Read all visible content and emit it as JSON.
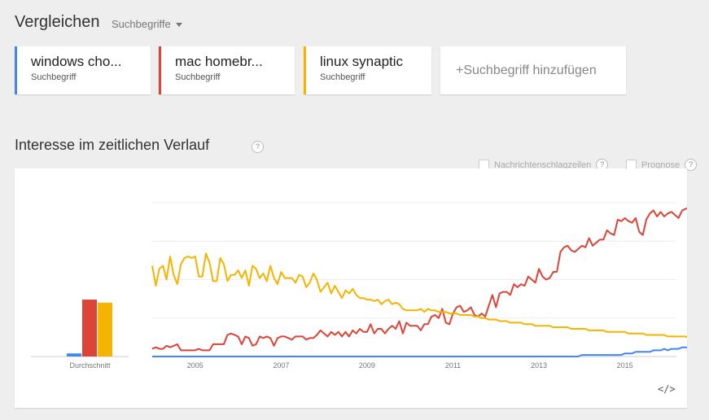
{
  "header": {
    "title": "Vergleichen",
    "dropdown_label": "Suchbegriffe"
  },
  "terms": [
    {
      "name": "windows cho...",
      "sub": "Suchbegriff",
      "color": "#4285f4"
    },
    {
      "name": "mac homebr...",
      "sub": "Suchbegriff",
      "color": "#db4437"
    },
    {
      "name": "linux synaptic",
      "sub": "Suchbegriff",
      "color": "#f4b400"
    }
  ],
  "add_term_label": "+Suchbegriff hinzufügen",
  "section": {
    "title": "Interesse im zeitlichen Verlauf",
    "help": "?"
  },
  "options": {
    "news_label": "Nachrichtenschlagzeilen",
    "forecast_label": "Prognose",
    "help": "?"
  },
  "embed_label": "</>",
  "chart_data": {
    "type": "line",
    "title": "Interesse im zeitlichen Verlauf",
    "x_start": 2004.0,
    "x_step": 0.0833333,
    "xlim": [
      2004.0,
      2016.2
    ],
    "ylim": [
      0,
      100
    ],
    "x_ticks": [
      "2005",
      "2007",
      "2009",
      "2011",
      "2013",
      "2015"
    ],
    "x_tick_values": [
      2005,
      2007,
      2009,
      2011,
      2013,
      2015
    ],
    "grid": true,
    "average_bars": {
      "label": "Durchschnitt",
      "values": [
        2,
        37,
        35
      ]
    },
    "series": [
      {
        "name": "windows cho...",
        "color": "#4285f4",
        "values": [
          0,
          0,
          0,
          0,
          0,
          0,
          0,
          0,
          0,
          0,
          0,
          0,
          0,
          0,
          0,
          0,
          0,
          0,
          0,
          0,
          0,
          0,
          0,
          0,
          0,
          0,
          0,
          0,
          0,
          0,
          0,
          0,
          0,
          0,
          0,
          0,
          0,
          0,
          0,
          0,
          0,
          0,
          0,
          0,
          0,
          0,
          0,
          0,
          0,
          0,
          0,
          0,
          0,
          0,
          0,
          0,
          0,
          0,
          0,
          0,
          0,
          0,
          0,
          0,
          0,
          0,
          0,
          0,
          0,
          0,
          0,
          0,
          0,
          0,
          0,
          0,
          0,
          0,
          0,
          0,
          0,
          0,
          0,
          0,
          0,
          0,
          0,
          0,
          0,
          0,
          0,
          0,
          0,
          0,
          0,
          0,
          0,
          0,
          0,
          0,
          0,
          0,
          0,
          0,
          0,
          0,
          0,
          0,
          0,
          0,
          0,
          0,
          0,
          0,
          0,
          0,
          0,
          0,
          0,
          0,
          1,
          1,
          1,
          1,
          1,
          1,
          1,
          1,
          1,
          1,
          1,
          1,
          2,
          2,
          2,
          3,
          3,
          3,
          3,
          3,
          4,
          4,
          4,
          5,
          4,
          5,
          5,
          5,
          6,
          6,
          6,
          6,
          6,
          7,
          6,
          6,
          7,
          7,
          8,
          8
        ]
      },
      {
        "name": "mac homebr...",
        "color": "#db4437",
        "values": [
          5,
          6,
          5,
          5,
          7,
          6,
          7,
          8,
          4,
          4,
          4,
          4,
          4,
          5,
          4,
          4,
          4,
          8,
          8,
          8,
          8,
          14,
          15,
          14,
          13,
          8,
          13,
          12,
          7,
          8,
          13,
          12,
          13,
          12,
          7,
          12,
          13,
          13,
          12,
          11,
          13,
          13,
          13,
          11,
          12,
          12,
          14,
          17,
          15,
          13,
          16,
          14,
          16,
          13,
          16,
          13,
          17,
          15,
          18,
          16,
          16,
          21,
          15,
          18,
          18,
          15,
          18,
          20,
          18,
          23,
          15,
          22,
          20,
          20,
          20,
          17,
          21,
          21,
          26,
          27,
          25,
          31,
          22,
          21,
          28,
          32,
          33,
          29,
          30,
          32,
          27,
          26,
          28,
          26,
          33,
          40,
          32,
          41,
          42,
          42,
          40,
          47,
          45,
          47,
          46,
          52,
          50,
          48,
          57,
          52,
          50,
          51,
          55,
          55,
          68,
          71,
          72,
          69,
          68,
          70,
          72,
          71,
          77,
          72,
          74,
          76,
          76,
          82,
          80,
          79,
          89,
          88,
          90,
          88,
          87,
          90,
          81,
          79,
          89,
          93,
          95,
          91,
          94,
          91,
          93,
          94,
          92,
          90,
          95,
          96,
          97,
          100,
          98,
          96,
          98,
          97,
          98,
          99,
          100,
          99
        ]
      },
      {
        "name": "linux synaptic",
        "color": "#f4b400",
        "values": [
          59,
          46,
          57,
          59,
          50,
          65,
          53,
          47,
          60,
          64,
          65,
          64,
          65,
          52,
          52,
          67,
          61,
          49,
          49,
          64,
          60,
          49,
          53,
          53,
          56,
          51,
          56,
          46,
          59,
          57,
          51,
          54,
          49,
          59,
          51,
          47,
          55,
          51,
          51,
          51,
          48,
          53,
          52,
          45,
          48,
          54,
          50,
          42,
          45,
          48,
          41,
          46,
          42,
          38,
          43,
          41,
          44,
          40,
          38,
          38,
          37,
          37,
          36,
          37,
          34,
          36,
          37,
          34,
          35,
          34,
          31,
          30,
          30,
          30,
          30,
          31,
          29,
          31,
          30,
          30,
          29,
          29,
          29,
          28,
          28,
          28,
          27,
          27,
          27,
          27,
          26,
          26,
          25,
          25,
          24,
          24,
          24,
          23,
          23,
          23,
          22,
          22,
          22,
          22,
          21,
          21,
          21,
          20,
          20,
          20,
          20,
          20,
          19,
          19,
          19,
          19,
          19,
          18,
          18,
          18,
          18,
          18,
          17,
          17,
          17,
          17,
          17,
          16,
          16,
          16,
          16,
          16,
          16,
          15,
          15,
          15,
          15,
          15,
          14,
          14,
          14,
          14,
          14,
          14,
          13,
          13,
          13,
          13,
          13,
          13,
          12,
          12,
          12,
          12,
          12,
          12,
          12,
          12,
          11,
          11
        ]
      }
    ]
  }
}
